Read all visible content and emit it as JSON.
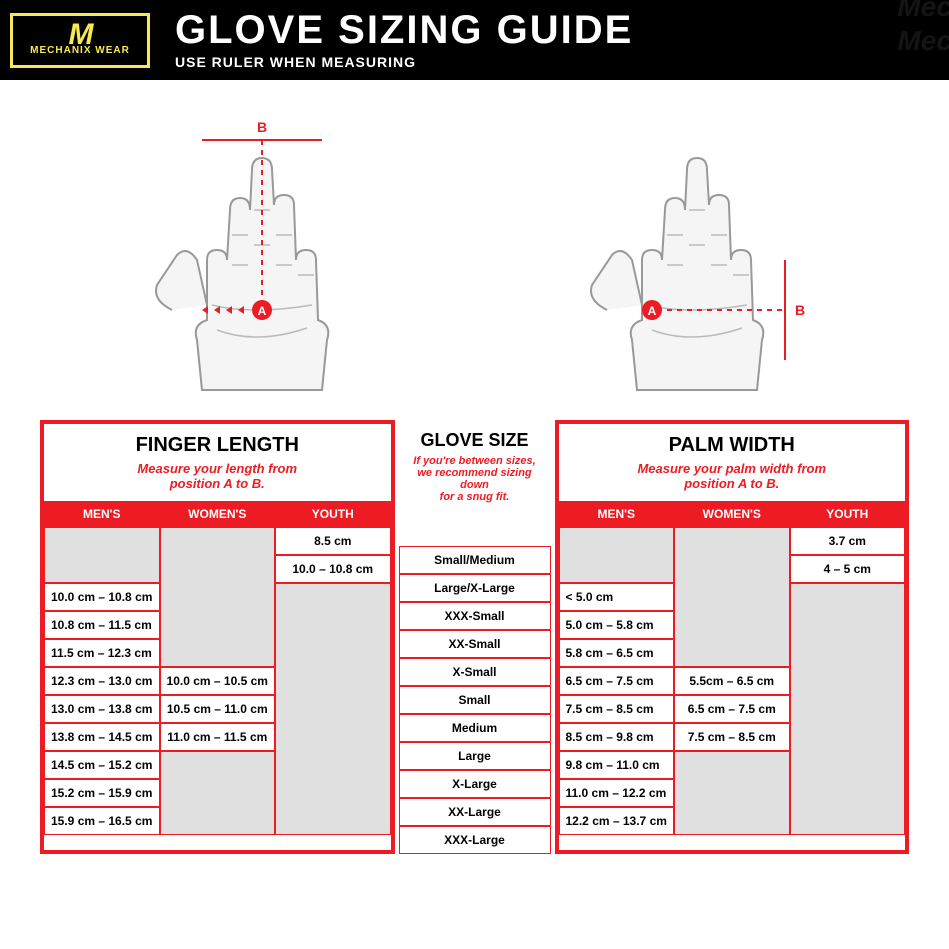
{
  "header": {
    "logo_main": "M",
    "logo_sub": "MECHANIX WEAR",
    "title": "GLOVE SIZING GUIDE",
    "subtitle": "USE RULER WHEN MEASURING",
    "watermark": "Mech"
  },
  "diagram": {
    "label_a": "A",
    "label_b": "B",
    "hand_stroke": "#888888",
    "hand_fill": "#f5f5f5",
    "marker_color": "#ED1C24"
  },
  "finger_length": {
    "title": "FINGER LENGTH",
    "subtitle": "Measure your length from\nposition A to B.",
    "columns": [
      "MEN'S",
      "WOMEN'S",
      "YOUTH"
    ],
    "rows": [
      [
        "",
        "",
        "8.5 cm"
      ],
      [
        "",
        "",
        "10.0 – 10.8 cm"
      ],
      [
        "10.0 cm – 10.8 cm",
        "",
        ""
      ],
      [
        "10.8 cm – 11.5 cm",
        "",
        ""
      ],
      [
        "11.5 cm – 12.3 cm",
        "",
        ""
      ],
      [
        "12.3 cm – 13.0 cm",
        "10.0 cm – 10.5 cm",
        ""
      ],
      [
        "13.0 cm – 13.8 cm",
        "10.5 cm – 11.0 cm",
        ""
      ],
      [
        "13.8 cm – 14.5 cm",
        "11.0 cm – 11.5 cm",
        ""
      ],
      [
        "14.5 cm – 15.2 cm",
        "",
        ""
      ],
      [
        "15.2 cm – 15.9 cm",
        "",
        ""
      ],
      [
        "15.9 cm – 16.5 cm",
        "",
        ""
      ]
    ],
    "merges": {
      "mens": {
        "start": 0,
        "end": 1
      },
      "womens1": {
        "start": 0,
        "end": 4
      },
      "womens2": {
        "start": 8,
        "end": 10
      },
      "youth": {
        "start": 2,
        "end": 10
      }
    }
  },
  "glove_size": {
    "title": "GLOVE SIZE",
    "subtitle": "If you're between sizes,\nwe recommend sizing down\nfor a snug fit.",
    "rows": [
      "Small/Medium",
      "Large/X-Large",
      "XXX-Small",
      "XX-Small",
      "X-Small",
      "Small",
      "Medium",
      "Large",
      "X-Large",
      "XX-Large",
      "XXX-Large"
    ]
  },
  "palm_width": {
    "title": "PALM WIDTH",
    "subtitle": "Measure your palm width from\nposition A to B.",
    "columns": [
      "MEN'S",
      "WOMEN'S",
      "YOUTH"
    ],
    "rows": [
      [
        "",
        "",
        "3.7 cm"
      ],
      [
        "",
        "",
        "4 – 5 cm"
      ],
      [
        "< 5.0 cm",
        "",
        ""
      ],
      [
        "5.0 cm – 5.8 cm",
        "",
        ""
      ],
      [
        "5.8 cm – 6.5 cm",
        "",
        ""
      ],
      [
        "6.5 cm – 7.5 cm",
        "5.5cm – 6.5 cm",
        ""
      ],
      [
        "7.5 cm – 8.5 cm",
        "6.5 cm – 7.5 cm",
        ""
      ],
      [
        "8.5 cm – 9.8 cm",
        "7.5 cm – 8.5 cm",
        ""
      ],
      [
        "9.8 cm – 11.0 cm",
        "",
        ""
      ],
      [
        "11.0 cm – 12.2 cm",
        "",
        ""
      ],
      [
        "12.2 cm – 13.7 cm",
        "",
        ""
      ]
    ],
    "merges": {
      "mens": {
        "start": 0,
        "end": 1
      },
      "womens1": {
        "start": 0,
        "end": 4
      },
      "womens2": {
        "start": 8,
        "end": 10
      },
      "youth": {
        "start": 2,
        "end": 10
      }
    }
  },
  "colors": {
    "red": "#ED1C24",
    "yellow": "#F7E951",
    "black": "#000000",
    "grey": "#e0e0e0"
  }
}
